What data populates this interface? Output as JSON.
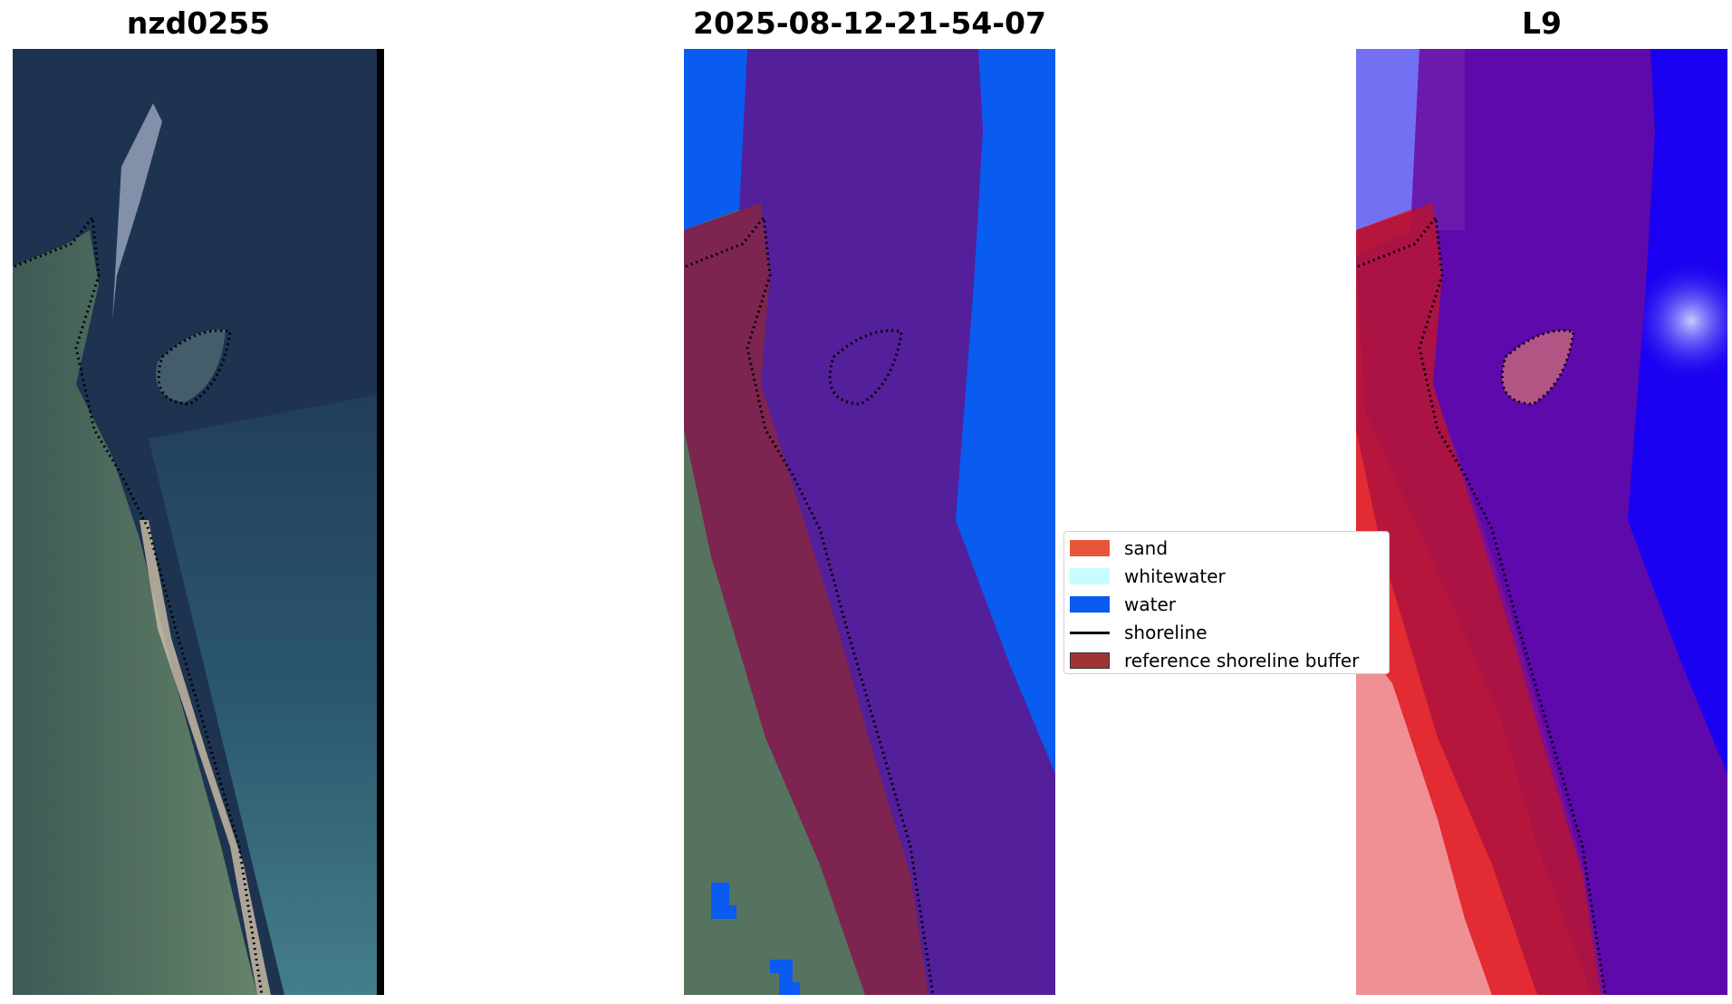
{
  "panels": [
    {
      "title": "nzd0255"
    },
    {
      "title": "2025-08-12-21-54-07"
    },
    {
      "title": "L9"
    }
  ],
  "legend": {
    "items": [
      {
        "label": "sand",
        "color": "#e8553a",
        "kind": "patch"
      },
      {
        "label": "whitewater",
        "color": "#c8fdfd",
        "kind": "patch"
      },
      {
        "label": "water",
        "color": "#0a5bf0",
        "kind": "patch"
      },
      {
        "label": "shoreline",
        "color": "#000000",
        "kind": "line"
      },
      {
        "label": "reference shoreline buffer",
        "color": "#a03434",
        "kind": "patch"
      }
    ]
  },
  "colors": {
    "deep_water_rgb": "#1e3350",
    "land_rgb": "#4f6a58",
    "shallow_water_rgb": "#3f7c8a",
    "classified_water": "#0a5bf0",
    "buffer_overlay": "#531f9a",
    "buffer_land": "#7d2451",
    "mndwi_land": "#e32b34",
    "mndwi_water": "#1a00f0",
    "mndwi_buffer": "#6a0aa0"
  }
}
